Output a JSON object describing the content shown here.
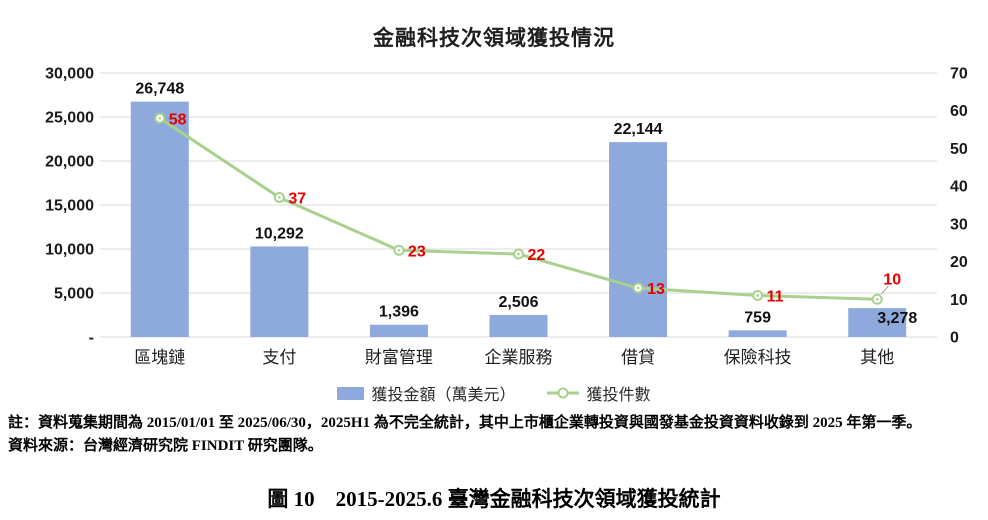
{
  "title": "金融科技次領域獲投情況",
  "legend": {
    "bar_label": "獲投金額（萬美元）",
    "line_label": "獲投件數"
  },
  "notes": {
    "line1": "註：資料蒐集期間為 2015/01/01 至 2025/06/30，2025H1 為不完全統計，其中上市櫃企業轉投資與國發基金投資資料收錄到 2025 年第一季。",
    "line2": "資料來源：台灣經濟研究院 FINDIT 研究團隊。"
  },
  "caption": "圖 10　2015-2025.6 臺灣金融科技次領域獲投統計",
  "colors": {
    "bar": "#8EA9DB",
    "line": "#A9D18E",
    "line_value_label": "#E60000",
    "gridline": "#D9D9D9",
    "axis_text": "#1a1a1a",
    "category_text": "#1f1f1f",
    "bar_value_label": "#111111"
  },
  "chart_data": {
    "type": "bar",
    "subtype": "bar-line combo, dual axis",
    "title": "金融科技次領域獲投情況",
    "categories": [
      "區塊鏈",
      "支付",
      "財富管理",
      "企業服務",
      "借貸",
      "保險科技",
      "其他"
    ],
    "series": [
      {
        "name": "獲投金額（萬美元）",
        "type": "bar",
        "axis": "left",
        "values": [
          26748,
          10292,
          1396,
          2506,
          22144,
          759,
          3278
        ],
        "value_labels": [
          "26,748",
          "10,292",
          "1,396",
          "2,506",
          "22,144",
          "759",
          "3,278"
        ],
        "label_placement": [
          "above",
          "above",
          "above",
          "above",
          "above",
          "above",
          "inside-right"
        ]
      },
      {
        "name": "獲投件數",
        "type": "line",
        "axis": "right",
        "values": [
          58,
          37,
          23,
          22,
          13,
          11,
          10
        ],
        "value_labels": [
          "58",
          "37",
          "23",
          "22",
          "13",
          "11",
          "10"
        ],
        "label_placement": [
          "right",
          "right",
          "right",
          "right",
          "right",
          "right",
          "above"
        ]
      }
    ],
    "left_axis": {
      "min": 0,
      "max": 30000,
      "step": 5000,
      "tick_labels": [
        "-",
        "5,000",
        "10,000",
        "15,000",
        "20,000",
        "25,000",
        "30,000"
      ]
    },
    "right_axis": {
      "min": 0,
      "max": 70,
      "step": 10,
      "tick_labels": [
        "0",
        "10",
        "20",
        "30",
        "40",
        "50",
        "60",
        "70"
      ]
    },
    "grid": true,
    "legend_position": "bottom"
  }
}
